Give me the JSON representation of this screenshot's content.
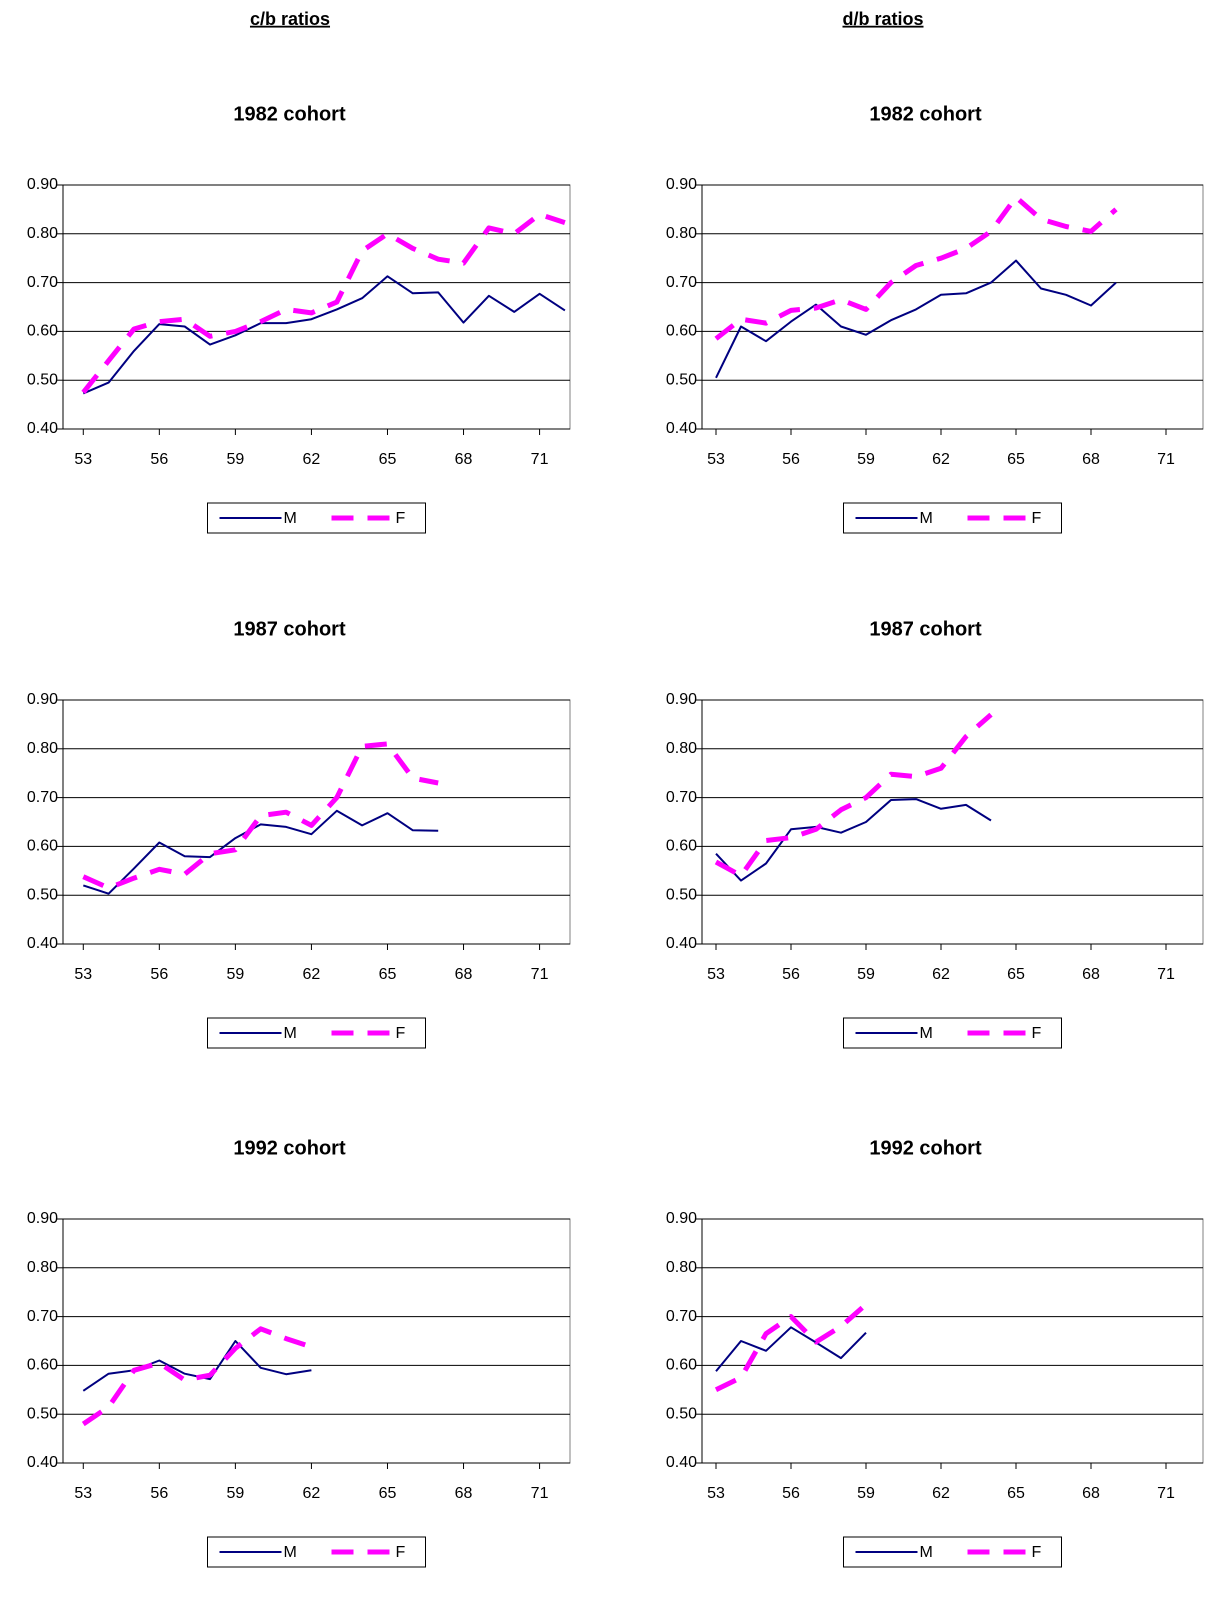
{
  "column_headers": [
    "c/b ratios",
    "d/b ratios"
  ],
  "chart_data": [
    {
      "type": "line",
      "title": "1982 cohort",
      "legend": "bottom",
      "grid": true,
      "x": [
        53,
        54,
        55,
        56,
        57,
        58,
        59,
        60,
        61,
        62,
        63,
        64,
        65,
        66,
        67,
        68,
        69,
        70,
        71,
        72
      ],
      "xlim": [
        52.2,
        72.2
      ],
      "xticks": [
        53,
        56,
        59,
        62,
        65,
        68,
        71
      ],
      "ylim": [
        0.4,
        0.9
      ],
      "yticks": [
        {
          "value": 0.4,
          "label": "0.40"
        },
        {
          "value": 0.5,
          "label": "0.50"
        },
        {
          "value": 0.6,
          "label": "0.60"
        },
        {
          "value": 0.7,
          "label": "0.70"
        },
        {
          "value": 0.8,
          "label": "0.80"
        },
        {
          "value": 0.9,
          "label": "0.90"
        }
      ],
      "series": [
        {
          "name": "M",
          "color": "#000080",
          "values": [
            0.473,
            0.495,
            0.56,
            0.615,
            0.61,
            0.573,
            0.592,
            0.617,
            0.617,
            0.625,
            0.645,
            0.668,
            0.713,
            0.678,
            0.68,
            0.618,
            0.673,
            0.64,
            0.677,
            0.643
          ]
        },
        {
          "name": "F",
          "color": "#ff00ff",
          "values": [
            0.475,
            0.54,
            0.605,
            0.62,
            0.625,
            0.59,
            0.6,
            0.62,
            0.645,
            0.638,
            0.66,
            0.765,
            0.8,
            0.77,
            0.748,
            0.74,
            0.812,
            0.8,
            0.84,
            0.823
          ]
        }
      ]
    },
    {
      "type": "line",
      "title": "1982 cohort",
      "legend": "bottom",
      "grid": true,
      "x": [
        53,
        54,
        55,
        56,
        57,
        58,
        59,
        60,
        61,
        62,
        63,
        64,
        65,
        66,
        67,
        68,
        69
      ],
      "xlim": [
        52.44,
        72.48
      ],
      "xticks": [
        53,
        56,
        59,
        62,
        65,
        68,
        71
      ],
      "ylim": [
        0.4,
        0.9
      ],
      "yticks": [
        {
          "value": 0.4,
          "label": "0.40"
        },
        {
          "value": 0.5,
          "label": "0.50"
        },
        {
          "value": 0.6,
          "label": "0.60"
        },
        {
          "value": 0.7,
          "label": "0.70"
        },
        {
          "value": 0.8,
          "label": "0.80"
        },
        {
          "value": 0.9,
          "label": "0.90"
        }
      ],
      "series": [
        {
          "name": "M",
          "color": "#000080",
          "values": [
            0.505,
            0.61,
            0.58,
            0.62,
            0.655,
            0.61,
            0.593,
            0.623,
            0.645,
            0.675,
            0.678,
            0.7,
            0.745,
            0.688,
            0.675,
            0.653,
            0.7
          ]
        },
        {
          "name": "F",
          "color": "#ff00ff",
          "values": [
            0.585,
            0.625,
            0.617,
            0.643,
            0.648,
            0.665,
            0.645,
            0.7,
            0.735,
            0.75,
            0.77,
            0.805,
            0.875,
            0.83,
            0.815,
            0.805,
            0.85
          ]
        }
      ]
    },
    {
      "type": "line",
      "title": "1987 cohort",
      "legend": "bottom",
      "grid": true,
      "x": [
        53,
        54,
        55,
        56,
        57,
        58,
        59,
        60,
        61,
        62,
        63,
        64,
        65,
        66,
        67
      ],
      "xlim": [
        52.2,
        72.2
      ],
      "xticks": [
        53,
        56,
        59,
        62,
        65,
        68,
        71
      ],
      "ylim": [
        0.4,
        0.9
      ],
      "yticks": [
        {
          "value": 0.4,
          "label": "0.40"
        },
        {
          "value": 0.5,
          "label": "0.50"
        },
        {
          "value": 0.6,
          "label": "0.60"
        },
        {
          "value": 0.7,
          "label": "0.70"
        },
        {
          "value": 0.8,
          "label": "0.80"
        },
        {
          "value": 0.9,
          "label": "0.90"
        }
      ],
      "series": [
        {
          "name": "M",
          "color": "#000080",
          "values": [
            0.52,
            0.503,
            0.555,
            0.608,
            0.58,
            0.578,
            0.617,
            0.645,
            0.64,
            0.625,
            0.673,
            0.643,
            0.668,
            0.633,
            0.632
          ]
        },
        {
          "name": "F",
          "color": "#ff00ff",
          "values": [
            0.538,
            0.515,
            0.535,
            0.553,
            0.543,
            0.585,
            0.593,
            0.663,
            0.67,
            0.643,
            0.7,
            0.805,
            0.81,
            0.74,
            0.73
          ]
        }
      ]
    },
    {
      "type": "line",
      "title": "1987 cohort",
      "legend": "bottom",
      "grid": true,
      "x": [
        53,
        54,
        55,
        56,
        57,
        58,
        59,
        60,
        61,
        62,
        63,
        64
      ],
      "xlim": [
        52.44,
        72.48
      ],
      "xticks": [
        53,
        56,
        59,
        62,
        65,
        68,
        71
      ],
      "ylim": [
        0.4,
        0.9
      ],
      "yticks": [
        {
          "value": 0.4,
          "label": "0.40"
        },
        {
          "value": 0.5,
          "label": "0.50"
        },
        {
          "value": 0.6,
          "label": "0.60"
        },
        {
          "value": 0.7,
          "label": "0.70"
        },
        {
          "value": 0.8,
          "label": "0.80"
        },
        {
          "value": 0.9,
          "label": "0.90"
        }
      ],
      "series": [
        {
          "name": "M",
          "color": "#000080",
          "values": [
            0.585,
            0.53,
            0.565,
            0.635,
            0.64,
            0.628,
            0.65,
            0.695,
            0.697,
            0.677,
            0.685,
            0.653
          ]
        },
        {
          "name": "F",
          "color": "#ff00ff",
          "values": [
            0.568,
            0.54,
            0.612,
            0.618,
            0.635,
            0.675,
            0.7,
            0.748,
            0.743,
            0.76,
            0.825,
            0.87
          ]
        }
      ]
    },
    {
      "type": "line",
      "title": "1992 cohort",
      "legend": "bottom",
      "grid": true,
      "x": [
        53,
        54,
        55,
        56,
        57,
        58,
        59,
        60,
        61,
        62
      ],
      "xlim": [
        52.2,
        72.2
      ],
      "xticks": [
        53,
        56,
        59,
        62,
        65,
        68,
        71
      ],
      "ylim": [
        0.4,
        0.9
      ],
      "yticks": [
        {
          "value": 0.4,
          "label": "0.40"
        },
        {
          "value": 0.5,
          "label": "0.50"
        },
        {
          "value": 0.6,
          "label": "0.60"
        },
        {
          "value": 0.7,
          "label": "0.70"
        },
        {
          "value": 0.8,
          "label": "0.80"
        },
        {
          "value": 0.9,
          "label": "0.90"
        }
      ],
      "series": [
        {
          "name": "M",
          "color": "#000080",
          "values": [
            0.548,
            0.583,
            0.59,
            0.61,
            0.583,
            0.572,
            0.65,
            0.595,
            0.582,
            0.59
          ]
        },
        {
          "name": "F",
          "color": "#ff00ff",
          "values": [
            0.48,
            0.515,
            0.59,
            0.605,
            0.57,
            0.58,
            0.635,
            0.675,
            0.655,
            0.638
          ]
        }
      ]
    },
    {
      "type": "line",
      "title": "1992 cohort",
      "legend": "bottom",
      "grid": true,
      "x": [
        53,
        54,
        55,
        56,
        57,
        58,
        59
      ],
      "xlim": [
        52.44,
        72.48
      ],
      "xticks": [
        53,
        56,
        59,
        62,
        65,
        68,
        71
      ],
      "ylim": [
        0.4,
        0.9
      ],
      "yticks": [
        {
          "value": 0.4,
          "label": "0.40"
        },
        {
          "value": 0.5,
          "label": "0.50"
        },
        {
          "value": 0.6,
          "label": "0.60"
        },
        {
          "value": 0.7,
          "label": "0.70"
        },
        {
          "value": 0.8,
          "label": "0.80"
        },
        {
          "value": 0.9,
          "label": "0.90"
        }
      ],
      "series": [
        {
          "name": "M",
          "color": "#000080",
          "values": [
            0.588,
            0.65,
            0.63,
            0.678,
            0.647,
            0.615,
            0.667
          ]
        },
        {
          "name": "F",
          "color": "#ff00ff",
          "values": [
            0.55,
            0.575,
            0.665,
            0.7,
            0.648,
            0.68,
            0.725
          ]
        }
      ]
    }
  ]
}
